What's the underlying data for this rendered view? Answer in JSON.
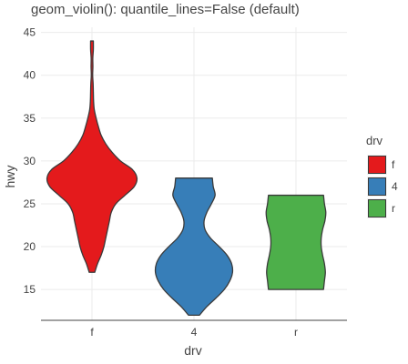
{
  "chart_data": {
    "type": "violin",
    "title": "geom_violin(): quantile_lines=False (default)",
    "xlabel": "drv",
    "ylabel": "hwy",
    "categories": [
      "f",
      "4",
      "r"
    ],
    "yticks": [
      15,
      20,
      25,
      30,
      35,
      40,
      45
    ],
    "ylim": [
      11.4,
      45.6
    ],
    "grid": true,
    "legend": {
      "title": "drv",
      "position": "right",
      "entries": [
        {
          "label": "f",
          "color": "#e41a1c"
        },
        {
          "label": "4",
          "color": "#377eb8"
        },
        {
          "label": "r",
          "color": "#4daf4a"
        }
      ]
    },
    "series": [
      {
        "category": "f",
        "color": "#e41a1c",
        "min": 17,
        "max": 44,
        "density": [
          [
            17,
            0.06
          ],
          [
            18,
            0.12
          ],
          [
            19,
            0.2
          ],
          [
            20,
            0.26
          ],
          [
            21,
            0.3
          ],
          [
            22,
            0.34
          ],
          [
            23,
            0.38
          ],
          [
            24,
            0.42
          ],
          [
            25,
            0.52
          ],
          [
            26,
            0.72
          ],
          [
            27,
            0.92
          ],
          [
            28,
            0.98
          ],
          [
            29,
            0.88
          ],
          [
            30,
            0.62
          ],
          [
            31,
            0.44
          ],
          [
            32,
            0.3
          ],
          [
            33,
            0.2
          ],
          [
            34,
            0.14
          ],
          [
            35,
            0.09
          ],
          [
            36,
            0.05
          ],
          [
            37,
            0.035
          ],
          [
            38,
            0.03
          ],
          [
            39,
            0.025
          ],
          [
            40,
            0.015
          ],
          [
            41,
            0.02
          ],
          [
            42,
            0.018
          ],
          [
            43,
            0.03
          ],
          [
            44,
            0.03
          ]
        ]
      },
      {
        "category": "4",
        "color": "#377eb8",
        "min": 12,
        "max": 28,
        "density": [
          [
            12,
            0.12
          ],
          [
            13,
            0.28
          ],
          [
            14,
            0.48
          ],
          [
            15,
            0.66
          ],
          [
            16,
            0.78
          ],
          [
            17,
            0.84
          ],
          [
            18,
            0.82
          ],
          [
            19,
            0.72
          ],
          [
            20,
            0.55
          ],
          [
            21,
            0.36
          ],
          [
            22,
            0.24
          ],
          [
            23,
            0.22
          ],
          [
            24,
            0.28
          ],
          [
            25,
            0.38
          ],
          [
            26,
            0.46
          ],
          [
            27,
            0.42
          ],
          [
            28,
            0.4
          ]
        ]
      },
      {
        "category": "r",
        "color": "#4daf4a",
        "min": 15,
        "max": 26,
        "density": [
          [
            15,
            0.6
          ],
          [
            16,
            0.62
          ],
          [
            17,
            0.64
          ],
          [
            18,
            0.62
          ],
          [
            19,
            0.58
          ],
          [
            20,
            0.55
          ],
          [
            21,
            0.55
          ],
          [
            22,
            0.58
          ],
          [
            23,
            0.63
          ],
          [
            24,
            0.65
          ],
          [
            25,
            0.62
          ],
          [
            26,
            0.6
          ]
        ]
      }
    ]
  }
}
